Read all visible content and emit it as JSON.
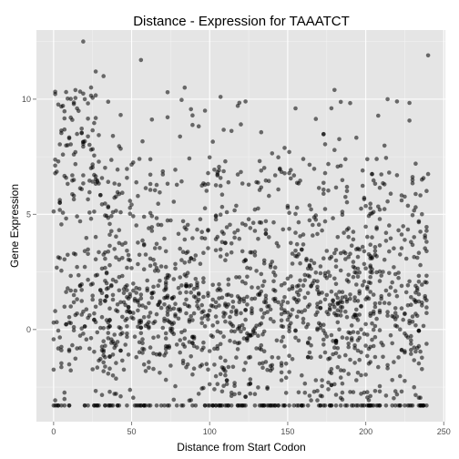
{
  "chart_data": {
    "type": "scatter",
    "title": "Distance - Expression for TAAATCT",
    "xlabel": "Distance from Start Codon",
    "ylabel": "Gene Expression",
    "xlim": [
      -11,
      251
    ],
    "ylim": [
      -4,
      13
    ],
    "xticks": [
      0,
      50,
      100,
      150,
      200,
      250
    ],
    "yticks": [
      0,
      5,
      10
    ],
    "grid": true,
    "legend": "none",
    "point_color": "#000000",
    "point_opacity": 0.55,
    "panel_color": "#e5e5e5",
    "grid_color": "#ffffff",
    "points_summary": {
      "count": 1800,
      "floor_value": -3.3,
      "note": "dense cloud; values concentrated between -3.3 and 5, sparse up to ~12.5"
    },
    "highlights": [
      [
        19,
        12.5
      ],
      [
        56,
        11.7
      ],
      [
        240,
        11.9
      ],
      [
        27,
        11.2
      ],
      [
        32,
        11.0
      ],
      [
        84,
        10.5
      ],
      [
        73,
        10.3
      ],
      [
        180,
        10.4
      ],
      [
        214,
        10.0
      ],
      [
        220,
        9.9
      ],
      [
        107,
        10.1
      ],
      [
        123,
        9.9
      ],
      [
        155,
        9.6
      ],
      [
        97,
        9.5
      ],
      [
        110,
        7.3
      ],
      [
        232,
        7.2
      ],
      [
        15,
        9.6
      ],
      [
        10,
        8.3
      ],
      [
        20,
        10.0
      ],
      [
        12,
        9.1
      ]
    ]
  }
}
